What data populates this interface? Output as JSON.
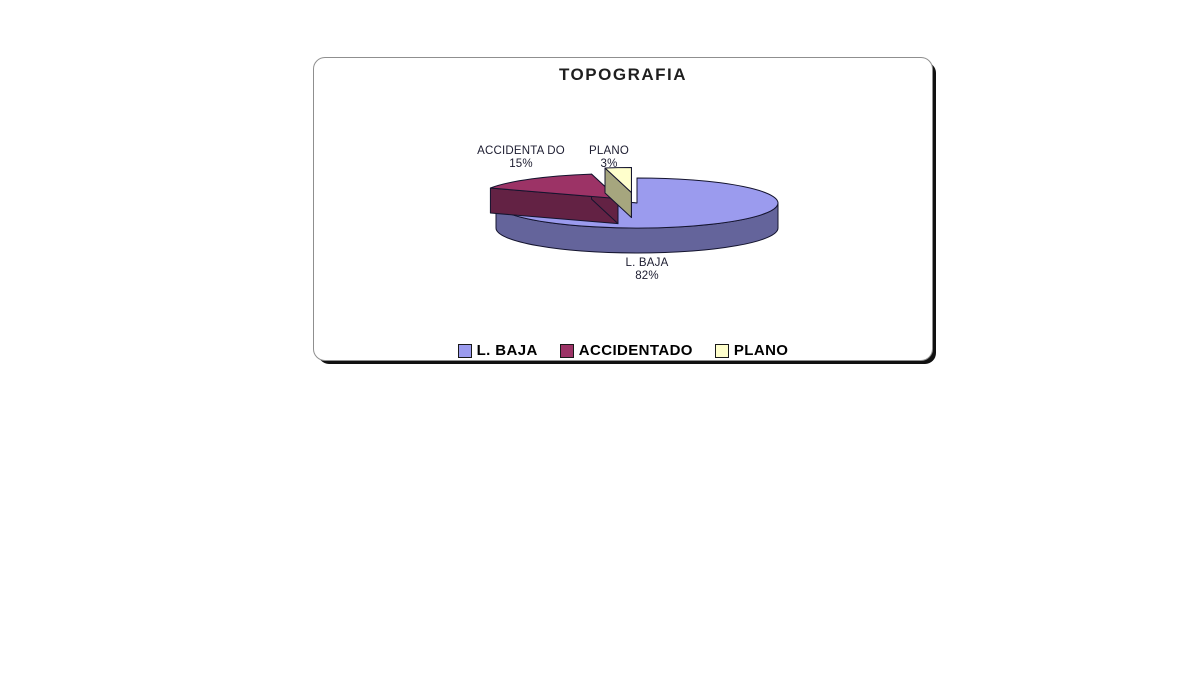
{
  "page": {
    "background": "#ffffff"
  },
  "panel": {
    "background": "#ffffff",
    "border_color": "#8f8f8f",
    "shadow_color": "#111111"
  },
  "chart_data": {
    "type": "pie",
    "style": "3d-exploded",
    "title": "TOPOGRAFIA",
    "legend_position": "bottom",
    "grid": false,
    "outline_color": "#14142e",
    "legend_swatch_border": "#1a1a1a",
    "slices": [
      {
        "label": "L. BAJA",
        "value": 82,
        "pct_label": "82%",
        "data_label": "L. BAJA",
        "color": "#9b9bee",
        "side_color": "#64649b",
        "explode": 0
      },
      {
        "label": "ACCIDENTADO",
        "value": 15,
        "pct_label": "15%",
        "data_label": "ACCIDENTA DO",
        "color": "#9c3366",
        "side_color": "#632244",
        "explode": 0.22
      },
      {
        "label": "PLANO",
        "value": 3,
        "pct_label": "3%",
        "data_label": "PLANO",
        "color": "#ffffcc",
        "side_color": "#a6a67e",
        "explode": 0.42
      }
    ]
  }
}
